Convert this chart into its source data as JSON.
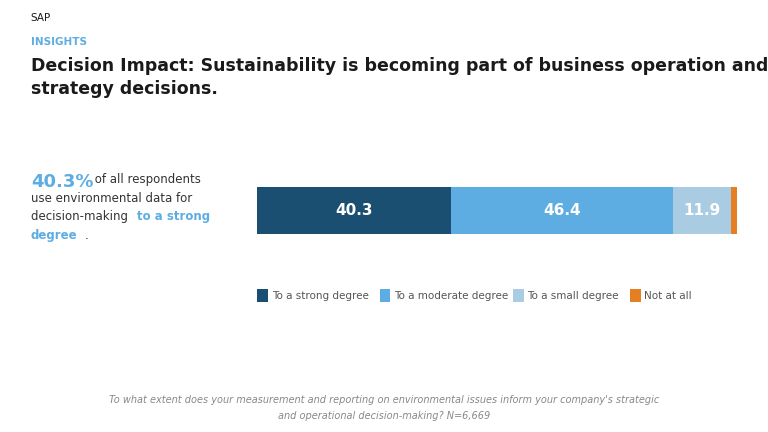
{
  "sap_label": "SAP",
  "insights_label": "INSIGHTS",
  "title_line1": "Decision Impact: Sustainability is becoming part of business operation and",
  "title_line2": "strategy decisions.",
  "highlight_pct": "40.3%",
  "bar_values": [
    40.3,
    46.4,
    11.9,
    1.4
  ],
  "bar_colors": [
    "#1b4f72",
    "#5dade2",
    "#a9cce3",
    "#e67e22"
  ],
  "bar_labels": [
    "40.3",
    "46.4",
    "11.9",
    ""
  ],
  "legend_labels": [
    "To a strong degree",
    "To a moderate degree",
    "To a small degree",
    "Not at all"
  ],
  "footnote_line1": "To what extent does your measurement and reporting on environmental issues inform your company's strategic",
  "footnote_line2": "and operational decision-making? N=6,669",
  "bg_color": "#ffffff",
  "title_color": "#1a1a1a",
  "sap_color": "#1a1a1a",
  "insights_color": "#5dade2",
  "highlight_color": "#5dade2",
  "bar_text_color": "#ffffff",
  "legend_text_color": "#555555",
  "footnote_color": "#888888"
}
